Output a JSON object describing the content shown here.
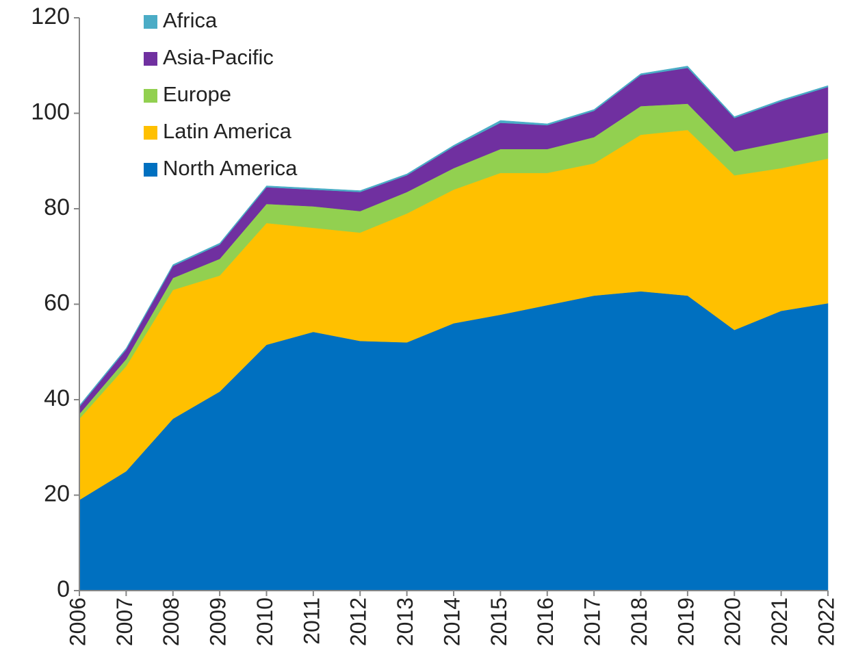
{
  "chart_data": {
    "type": "stacked_area",
    "categories": [
      "2006",
      "2007",
      "2008",
      "2009",
      "2010",
      "2011",
      "2012",
      "2013",
      "2014",
      "2015",
      "2016",
      "2017",
      "2018",
      "2019",
      "2020",
      "2021",
      "2022"
    ],
    "series": [
      {
        "name": "North America",
        "color": "#0070c0",
        "values": [
          19,
          25,
          36,
          41.7,
          51.5,
          54.2,
          52.3,
          52,
          56,
          57.8,
          59.8,
          61.8,
          62.7,
          61.8,
          54.6,
          58.6,
          60.2
        ]
      },
      {
        "name": "Latin America",
        "color": "#ffc000",
        "values": [
          17,
          22,
          27,
          24.3,
          25.5,
          21.8,
          22.7,
          27,
          28,
          29.7,
          27.7,
          27.7,
          32.8,
          34.7,
          32.4,
          29.9,
          30.3
        ]
      },
      {
        "name": "Europe",
        "color": "#92d050",
        "values": [
          1,
          1.5,
          2.5,
          3.5,
          4,
          4.5,
          4.5,
          4.5,
          4.5,
          5,
          5,
          5.5,
          6,
          5.5,
          5,
          5.5,
          5.5
        ]
      },
      {
        "name": "Asia-Pacific",
        "color": "#7030a0",
        "values": [
          1.5,
          2,
          2.5,
          3,
          3.5,
          3.5,
          4,
          3.5,
          4.5,
          5.5,
          5,
          5.5,
          6.5,
          7.5,
          7,
          8.5,
          9.5
        ]
      },
      {
        "name": "Africa",
        "color": "#4bacc6",
        "values": [
          0.3,
          0.3,
          0.3,
          0.3,
          0.3,
          0.3,
          0.3,
          0.3,
          0.3,
          0.5,
          0.3,
          0.3,
          0.3,
          0.4,
          0.3,
          0.3,
          0.3
        ]
      }
    ],
    "ylim": [
      0,
      120
    ],
    "yticks": [
      0,
      20,
      40,
      60,
      80,
      100,
      120
    ],
    "legend": "top-left"
  }
}
